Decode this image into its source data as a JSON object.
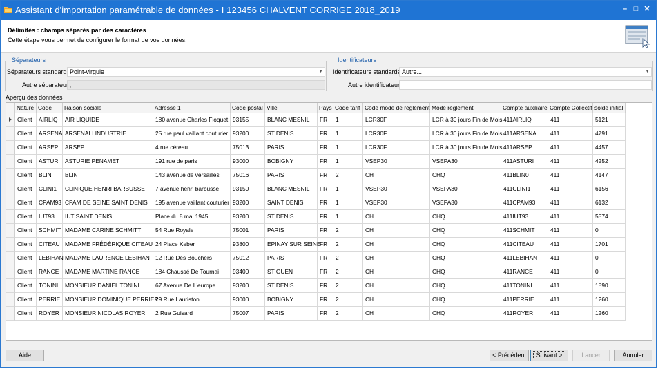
{
  "window": {
    "title": "Assistant d'importation paramétrable de données - I 123456 CHALVENT CORRIGE 2018_2019",
    "controls": {
      "minimize": "–",
      "maximize": "□",
      "close": "✕"
    }
  },
  "header": {
    "title": "Délimités : champs séparés par des caractères",
    "description": "Cette étape vous permet de configurer le format de vos données.",
    "icon": "wizard-window-icon"
  },
  "separators": {
    "group_label": "Séparateurs",
    "standard_label": "Séparateurs standards",
    "standard_value": "Point-virgule",
    "other_label": "Autre séparateur",
    "other_value": ";"
  },
  "identifiers": {
    "group_label": "Identificateurs",
    "standard_label": "Identificateurs standards",
    "standard_value": "Autre...",
    "other_label": "Autre identificateur",
    "other_value": ""
  },
  "preview": {
    "label": "Aperçu des données",
    "columns": [
      "Nature",
      "Code",
      "Raison sociale",
      "Adresse 1",
      "Code postal",
      "Ville",
      "Pays",
      "Code tarif",
      "Code mode de règlement",
      "Mode règlement",
      "Compte auxiliaire",
      "Compte Collectif",
      "solde initial"
    ],
    "rows": [
      [
        "Client",
        "AIRLIQ",
        "AIR LIQUIDE",
        "180 avenue Charles Floquet",
        "93155",
        "BLANC MESNIL",
        "FR",
        "1",
        "LCR30F",
        "LCR à 30 jours Fin de Mois",
        "411AIRLIQ",
        "411",
        "5121"
      ],
      [
        "Client",
        "ARSENA",
        "ARSENALI INDUSTRIE",
        "25 rue paul vaillant couturier",
        "93200",
        "ST DENIS",
        "FR",
        "1",
        "LCR30F",
        "LCR à 30 jours Fin de Mois",
        "411ARSENA",
        "411",
        "4791"
      ],
      [
        "Client",
        "ARSEP",
        "ARSEP",
        "4 rue céreau",
        "75013",
        "PARIS",
        "FR",
        "1",
        "LCR30F",
        "LCR à 30 jours Fin de Mois",
        "411ARSEP",
        "411",
        "4457"
      ],
      [
        "Client",
        "ASTURI",
        "ASTURIE PENAMET",
        "191 rue de paris",
        "93000",
        "BOBIGNY",
        "FR",
        "1",
        "VSEP30",
        "VSEPA30",
        "411ASTURI",
        "411",
        "4252"
      ],
      [
        "Client",
        "BLIN",
        "BLIN",
        "143 avenue de versailles",
        "75016",
        "PARIS",
        "FR",
        "2",
        "CH",
        "CHQ",
        "411BLIN0",
        "411",
        "4147"
      ],
      [
        "Client",
        "CLINI1",
        "CLINIQUE HENRI BARBUSSE",
        "7 avenue henri barbusse",
        "93150",
        "BLANC MESNIL",
        "FR",
        "1",
        "VSEP30",
        "VSEPA30",
        "411CLINI1",
        "411",
        "6156"
      ],
      [
        "Client",
        "CPAM93",
        "CPAM DE SEINE SAINT DENIS",
        "195 avenue vaillant couturier",
        "93200",
        "SAINT DENIS",
        "FR",
        "1",
        "VSEP30",
        "VSEPA30",
        "411CPAM93",
        "411",
        "6132"
      ],
      [
        "Client",
        "IUT93",
        "IUT SAINT DENIS",
        "Place du 8 mai 1945",
        "93200",
        "ST DENIS",
        "FR",
        "1",
        "CH",
        "CHQ",
        "411IUT93",
        "411",
        "5574"
      ],
      [
        "Client",
        "SCHMIT",
        "MADAME CARINE SCHMITT",
        "54 Rue Royale",
        "75001",
        "PARIS",
        "FR",
        "2",
        "CH",
        "CHQ",
        "411SCHMIT",
        "411",
        "0"
      ],
      [
        "Client",
        "CITEAU",
        "MADAME FRÉDÉRIQUE CITEAU",
        "24 Place Keber",
        "93800",
        "EPINAY SUR SEINE",
        "FR",
        "2",
        "CH",
        "CHQ",
        "411CITEAU",
        "411",
        "1701"
      ],
      [
        "Client",
        "LEBIHAN",
        "MADAME LAURENCE LEBIHAN",
        "12 Rue Des Bouchers",
        "75012",
        "PARIS",
        "FR",
        "2",
        "CH",
        "CHQ",
        "411LEBIHAN",
        "411",
        "0"
      ],
      [
        "Client",
        "RANCE",
        "MADAME MARTINE RANCE",
        "184 Chaussé De Tournai",
        "93400",
        "ST OUEN",
        "FR",
        "2",
        "CH",
        "CHQ",
        "411RANCE",
        "411",
        "0"
      ],
      [
        "Client",
        "TONINI",
        "MONSIEUR DANIEL TONINI",
        "67 Avenue De L'europe",
        "93200",
        "ST DENIS",
        "FR",
        "2",
        "CH",
        "CHQ",
        "411TONINI",
        "411",
        "1890"
      ],
      [
        "Client",
        "PERRIE",
        "MONSIEUR DOMINIQUE PERRIER",
        "29 Rue Lauriston",
        "93000",
        "BOBIGNY",
        "FR",
        "2",
        "CH",
        "CHQ",
        "411PERRIE",
        "411",
        "1260"
      ],
      [
        "Client",
        "ROYER",
        "MONSIEUR NICOLAS ROYER",
        "2 Rue Guisard",
        "75007",
        "PARIS",
        "FR",
        "2",
        "CH",
        "CHQ",
        "411ROYER",
        "411",
        "1260"
      ]
    ]
  },
  "buttons": {
    "help": "Aide",
    "previous": "< Précédent",
    "next": "Suivant >",
    "launch": "Lancer",
    "cancel": "Annuler"
  },
  "colors": {
    "titlebar": "#1f74d4",
    "group_label": "#1f5faa"
  }
}
